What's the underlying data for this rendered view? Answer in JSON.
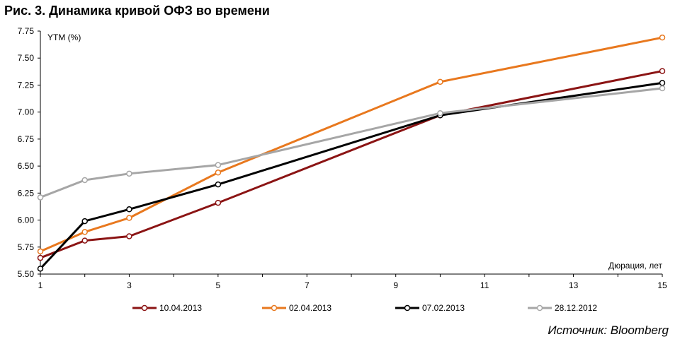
{
  "title": "Рис. 3. Динамика кривой ОФЗ во времени",
  "source": "Источник: Bloomberg",
  "chart_data": {
    "type": "line",
    "ylabel": "YTM (%)",
    "xlabel": "Дюрация, лет",
    "xlim": [
      1,
      15
    ],
    "ylim": [
      5.5,
      7.75
    ],
    "x_ticks": [
      1,
      3,
      5,
      7,
      9,
      11,
      13,
      15
    ],
    "y_ticks": [
      "7.75",
      "7.50",
      "7.25",
      "7.00",
      "6.75",
      "6.50",
      "6.25",
      "6.00",
      "5.75",
      "5.50"
    ],
    "legend_position": "bottom",
    "series": [
      {
        "name": "10.04.2013",
        "color": "#8b1414",
        "x": [
          1,
          2,
          3,
          5,
          10,
          15
        ],
        "y": [
          5.65,
          5.81,
          5.85,
          6.16,
          6.97,
          7.38
        ]
      },
      {
        "name": "02.04.2013",
        "color": "#e8781e",
        "x": [
          1,
          2,
          3,
          5,
          10,
          15
        ],
        "y": [
          5.71,
          5.89,
          6.02,
          6.44,
          7.28,
          7.69
        ]
      },
      {
        "name": "07.02.2013",
        "color": "#000000",
        "x": [
          1,
          2,
          3,
          5,
          10,
          15
        ],
        "y": [
          5.55,
          5.99,
          6.1,
          6.33,
          6.97,
          7.27
        ]
      },
      {
        "name": "28.12.2012",
        "color": "#a6a6a6",
        "x": [
          1,
          2,
          3,
          5,
          10,
          15
        ],
        "y": [
          6.21,
          6.37,
          6.43,
          6.51,
          6.99,
          7.22
        ]
      }
    ]
  }
}
